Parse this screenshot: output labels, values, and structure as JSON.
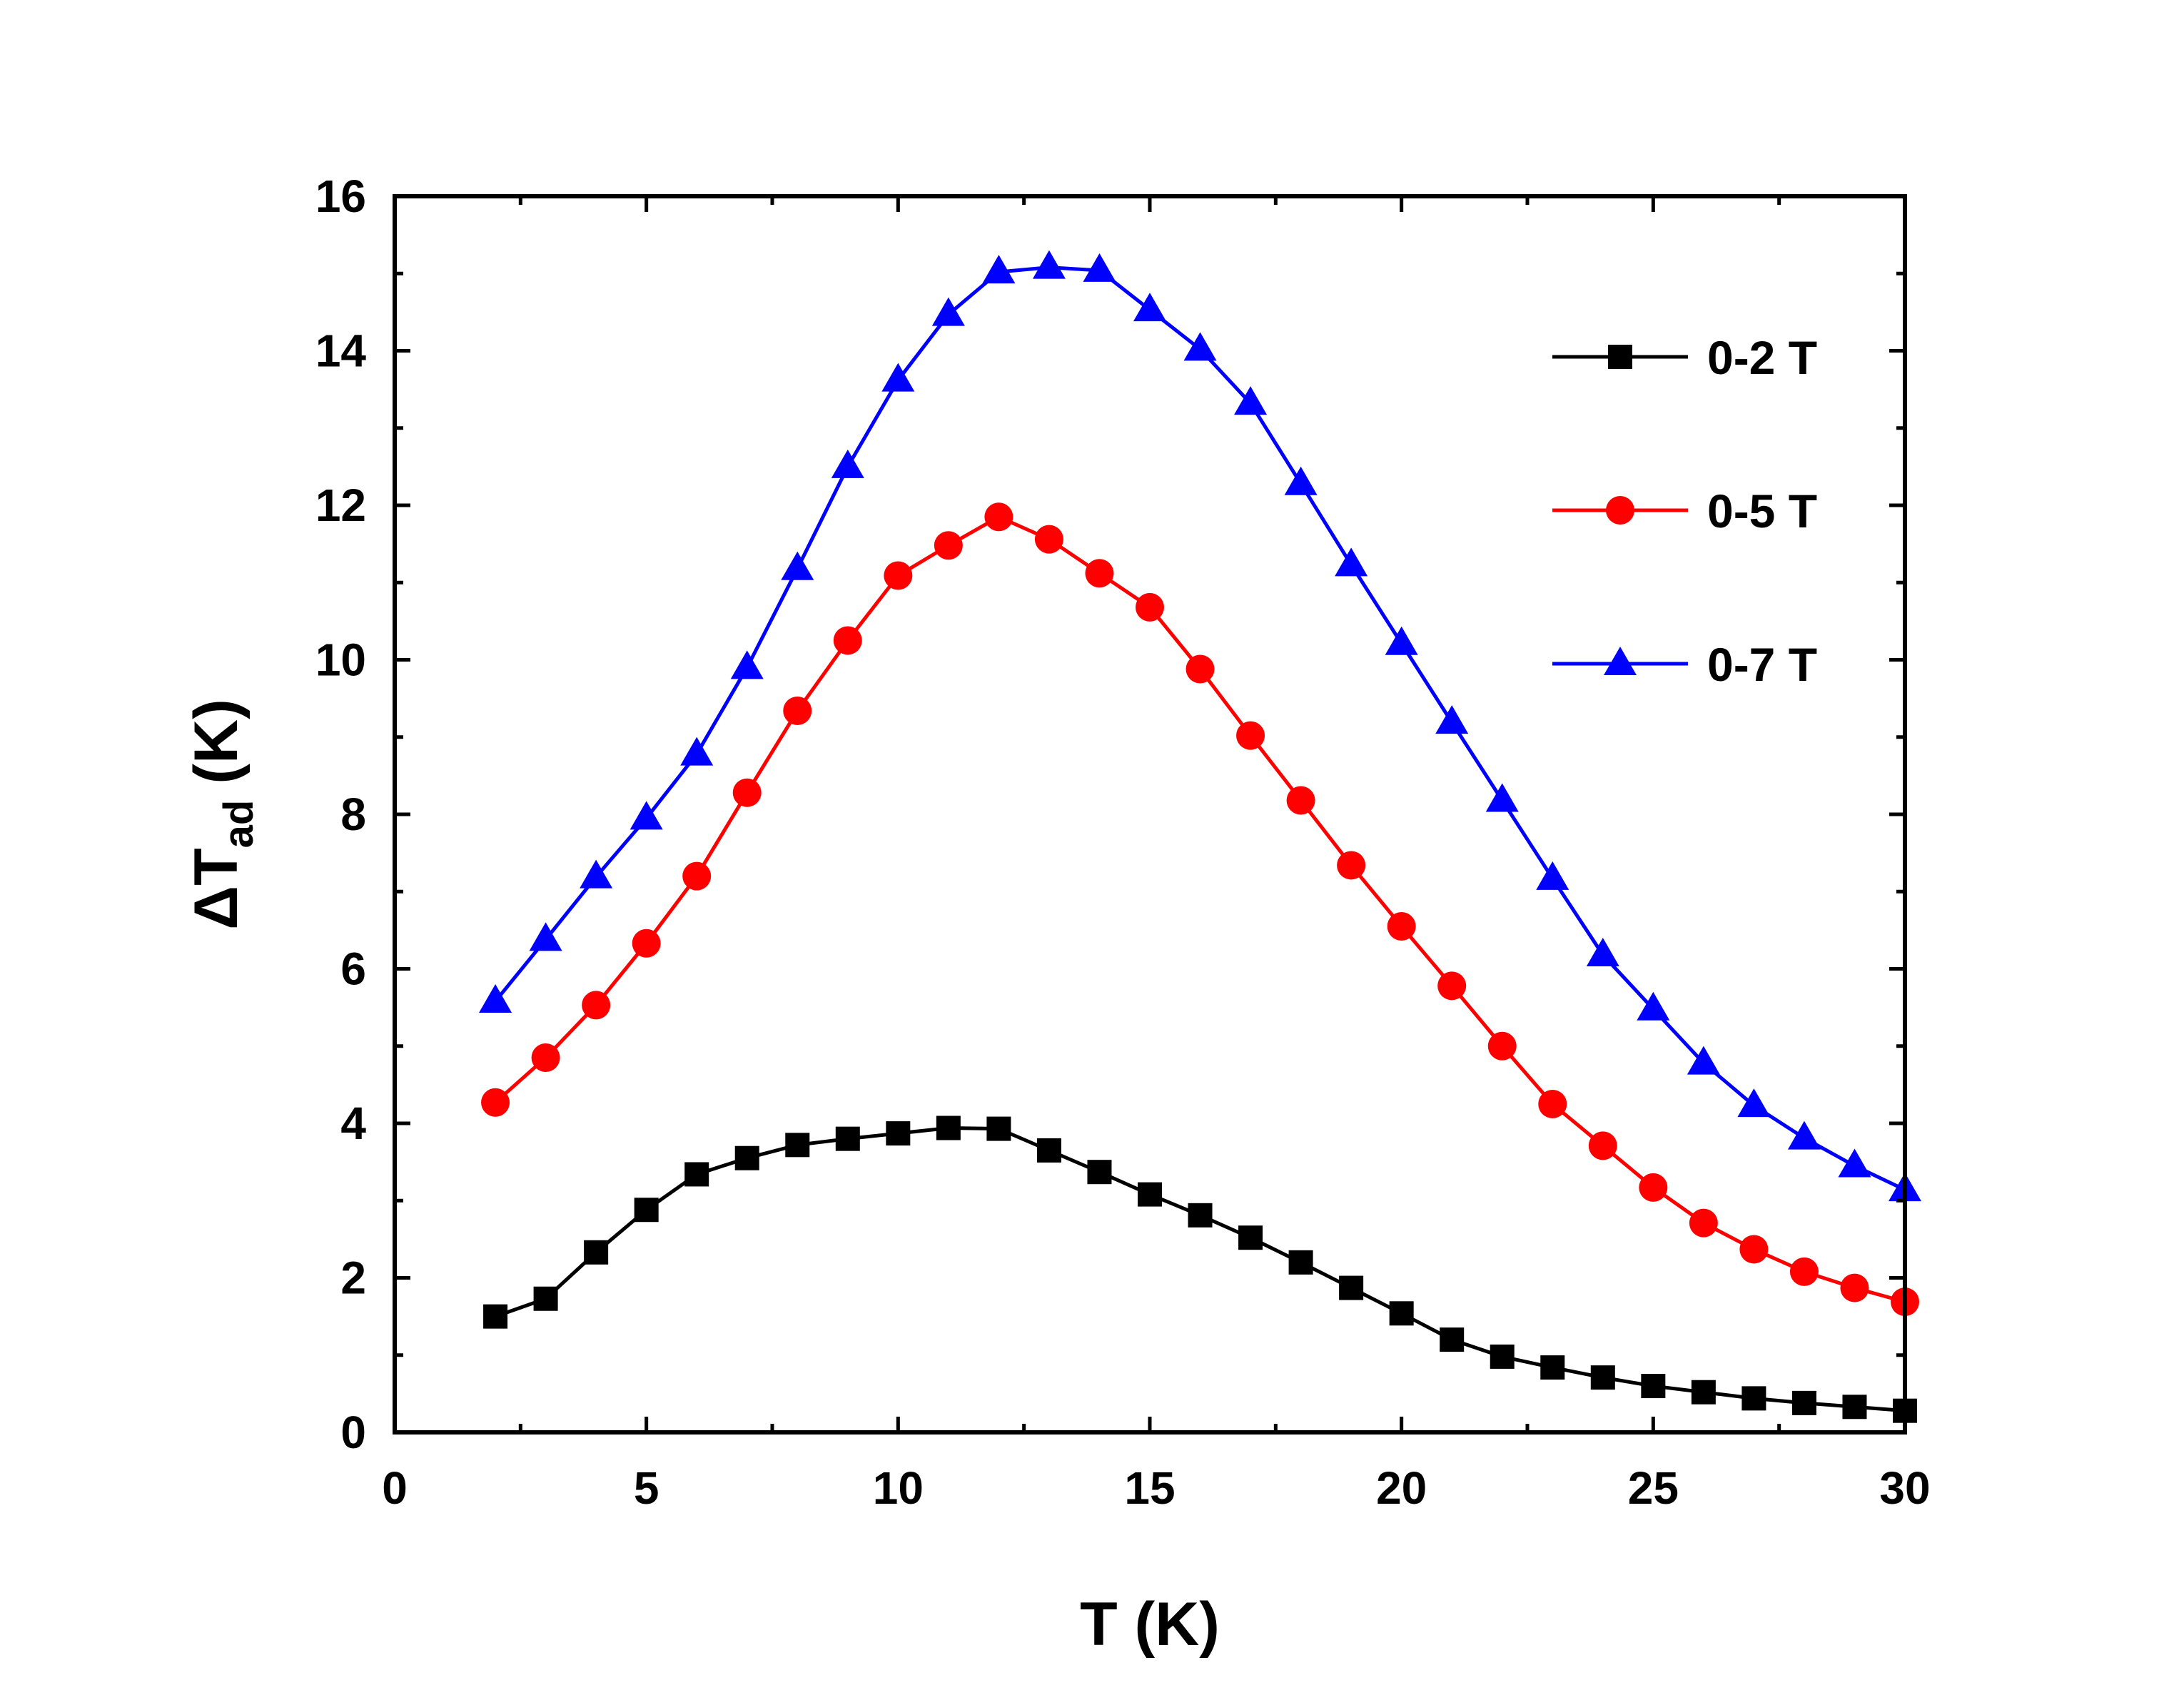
{
  "chart_data": {
    "type": "line",
    "title": "",
    "xlabel": "T (K)",
    "ylabel_main": "ΔT",
    "ylabel_sub": "ad",
    "ylabel_unit": "(K)",
    "xlim": [
      0,
      30
    ],
    "ylim": [
      0,
      16
    ],
    "xticks": [
      0,
      5,
      10,
      15,
      20,
      25,
      30
    ],
    "yticks": [
      0,
      2,
      4,
      6,
      8,
      10,
      12,
      14,
      16
    ],
    "grid": false,
    "legend_position": "top-right",
    "x": [
      2,
      3,
      4,
      5,
      6,
      7,
      8,
      9,
      10,
      11,
      12,
      13,
      14,
      15,
      16,
      17,
      18,
      19,
      20,
      21,
      22,
      23,
      24,
      25,
      26,
      27,
      28,
      29,
      30
    ],
    "series": [
      {
        "name": "0-2 T",
        "color": "#000000",
        "marker": "square",
        "values": [
          1.5,
          1.73,
          2.33,
          2.88,
          3.34,
          3.55,
          3.72,
          3.8,
          3.87,
          3.94,
          3.93,
          3.65,
          3.37,
          3.08,
          2.81,
          2.52,
          2.2,
          1.87,
          1.54,
          1.2,
          0.98,
          0.84,
          0.71,
          0.6,
          0.52,
          0.44,
          0.38,
          0.33,
          0.28
        ]
      },
      {
        "name": "0-5 T",
        "color": "#ff0000",
        "marker": "circle",
        "values": [
          4.27,
          4.85,
          5.53,
          6.33,
          7.2,
          8.28,
          9.34,
          10.25,
          11.09,
          11.48,
          11.85,
          11.56,
          11.12,
          10.68,
          9.88,
          9.02,
          8.18,
          7.34,
          6.55,
          5.78,
          5.0,
          4.25,
          3.71,
          3.17,
          2.71,
          2.37,
          2.08,
          1.87,
          1.69
        ]
      },
      {
        "name": "0-7 T",
        "color": "#0000ff",
        "marker": "triangle",
        "values": [
          5.58,
          6.38,
          7.19,
          7.95,
          8.78,
          9.9,
          11.18,
          12.5,
          13.62,
          14.47,
          15.02,
          15.08,
          15.04,
          14.53,
          14.02,
          13.32,
          12.28,
          11.23,
          10.21,
          9.19,
          8.18,
          7.17,
          6.18,
          5.48,
          4.78,
          4.23,
          3.81,
          3.45,
          3.14
        ]
      }
    ]
  }
}
